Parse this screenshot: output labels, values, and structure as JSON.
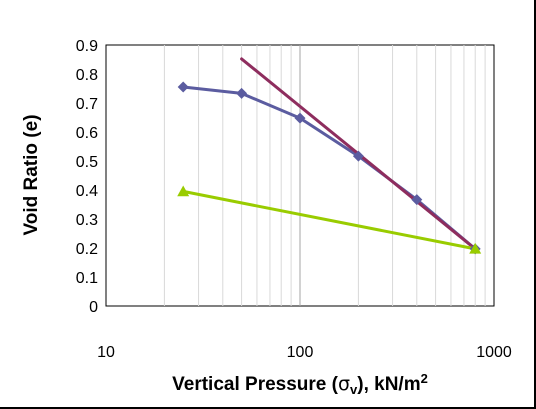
{
  "chart_data": {
    "type": "line",
    "xscale": "log",
    "xlim": [
      10,
      1000
    ],
    "ylim": [
      0,
      0.9
    ],
    "xticks": [
      "10",
      "100",
      "1000"
    ],
    "yticks": [
      "0",
      "0.1",
      "0.2",
      "0.3",
      "0.4",
      "0.5",
      "0.6",
      "0.7",
      "0.8",
      "0.9"
    ],
    "xlabel": "Vertical Pressure (σv), kN/m²",
    "xlabel_parts": {
      "main": "Vertical Pressure (",
      "sigma": "σ",
      "sub": "v",
      "rest": "), kN/m",
      "sup": "2"
    },
    "ylabel": "Void Ratio (e)",
    "grid": {
      "vertical_minor": true,
      "horizontal": false
    },
    "series": [
      {
        "color": "#5B5CA0",
        "marker": "diamond",
        "x": [
          25,
          50,
          100,
          200,
          400,
          800
        ],
        "y": [
          0.755,
          0.733,
          0.648,
          0.517,
          0.367,
          0.197
        ]
      },
      {
        "color": "#8E2D5E",
        "marker": "none",
        "x": [
          50,
          800
        ],
        "y": [
          0.852,
          0.197
        ]
      },
      {
        "color": "#99CC00",
        "marker": "triangle",
        "x": [
          25,
          800
        ],
        "y": [
          0.395,
          0.197
        ]
      }
    ]
  }
}
